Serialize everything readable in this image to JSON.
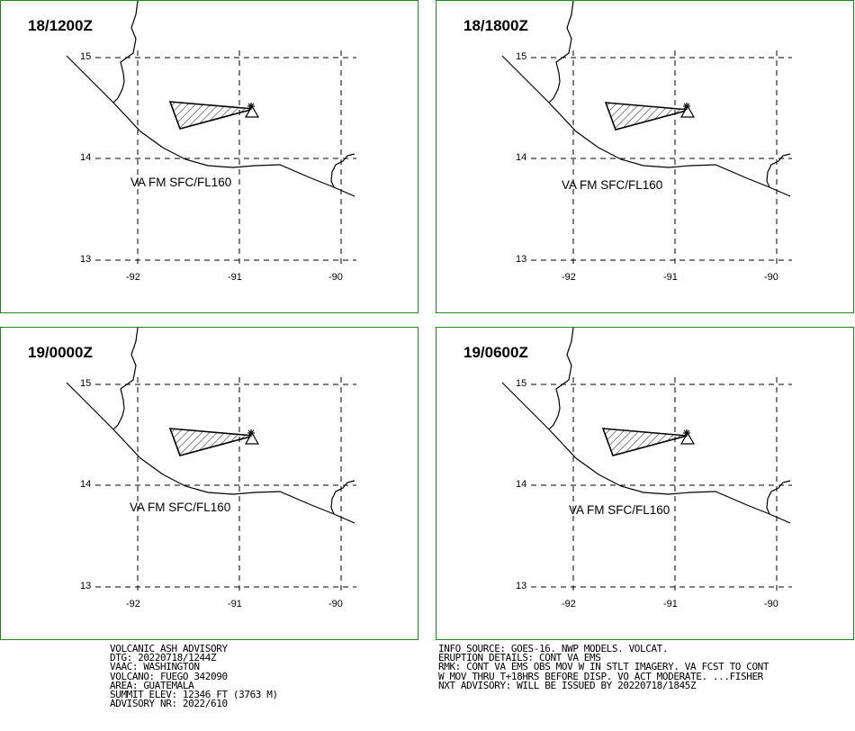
{
  "panels": [
    {
      "time": "18/1200Z",
      "level": "VA FM SFC/FL160"
    },
    {
      "time": "18/1800Z",
      "level": "VA FM SFC/FL160"
    },
    {
      "time": "19/0000Z",
      "level": "VA FM SFC/FL160"
    },
    {
      "time": "19/0600Z",
      "level": "VA FM SFC/FL160"
    }
  ],
  "axes": {
    "lat_labels": [
      "15",
      "14",
      "13"
    ],
    "lon_labels": [
      "-92",
      "-91",
      "-90"
    ]
  },
  "advisory_left": [
    "VOLCANIC ASH ADVISORY",
    "DTG: 20220718/1244Z",
    "VAAC: WASHINGTON",
    "VOLCANO: FUEGO 342090",
    "AREA: GUATEMALA",
    "SUMMIT ELEV: 12346 FT (3763 M)",
    "ADVISORY NR: 2022/610"
  ],
  "advisory_right": [
    "INFO SOURCE: GOES-16. NWP MODELS. VOLCAT.",
    "ERUPTION DETAILS: CONT VA EMS",
    "RMK: CONT VA EMS OBS MOV W IN STLT IMAGERY. VA FCST TO CONT",
    "W MOV THRU T+18HRS BEFORE DISP. VO ACT MODERATE. ...FISHER",
    "NXT ADVISORY: WILL BE ISSUED BY 20220718/1845Z"
  ],
  "colors": {
    "border": "#1a8a1a",
    "lines": "#000000"
  }
}
